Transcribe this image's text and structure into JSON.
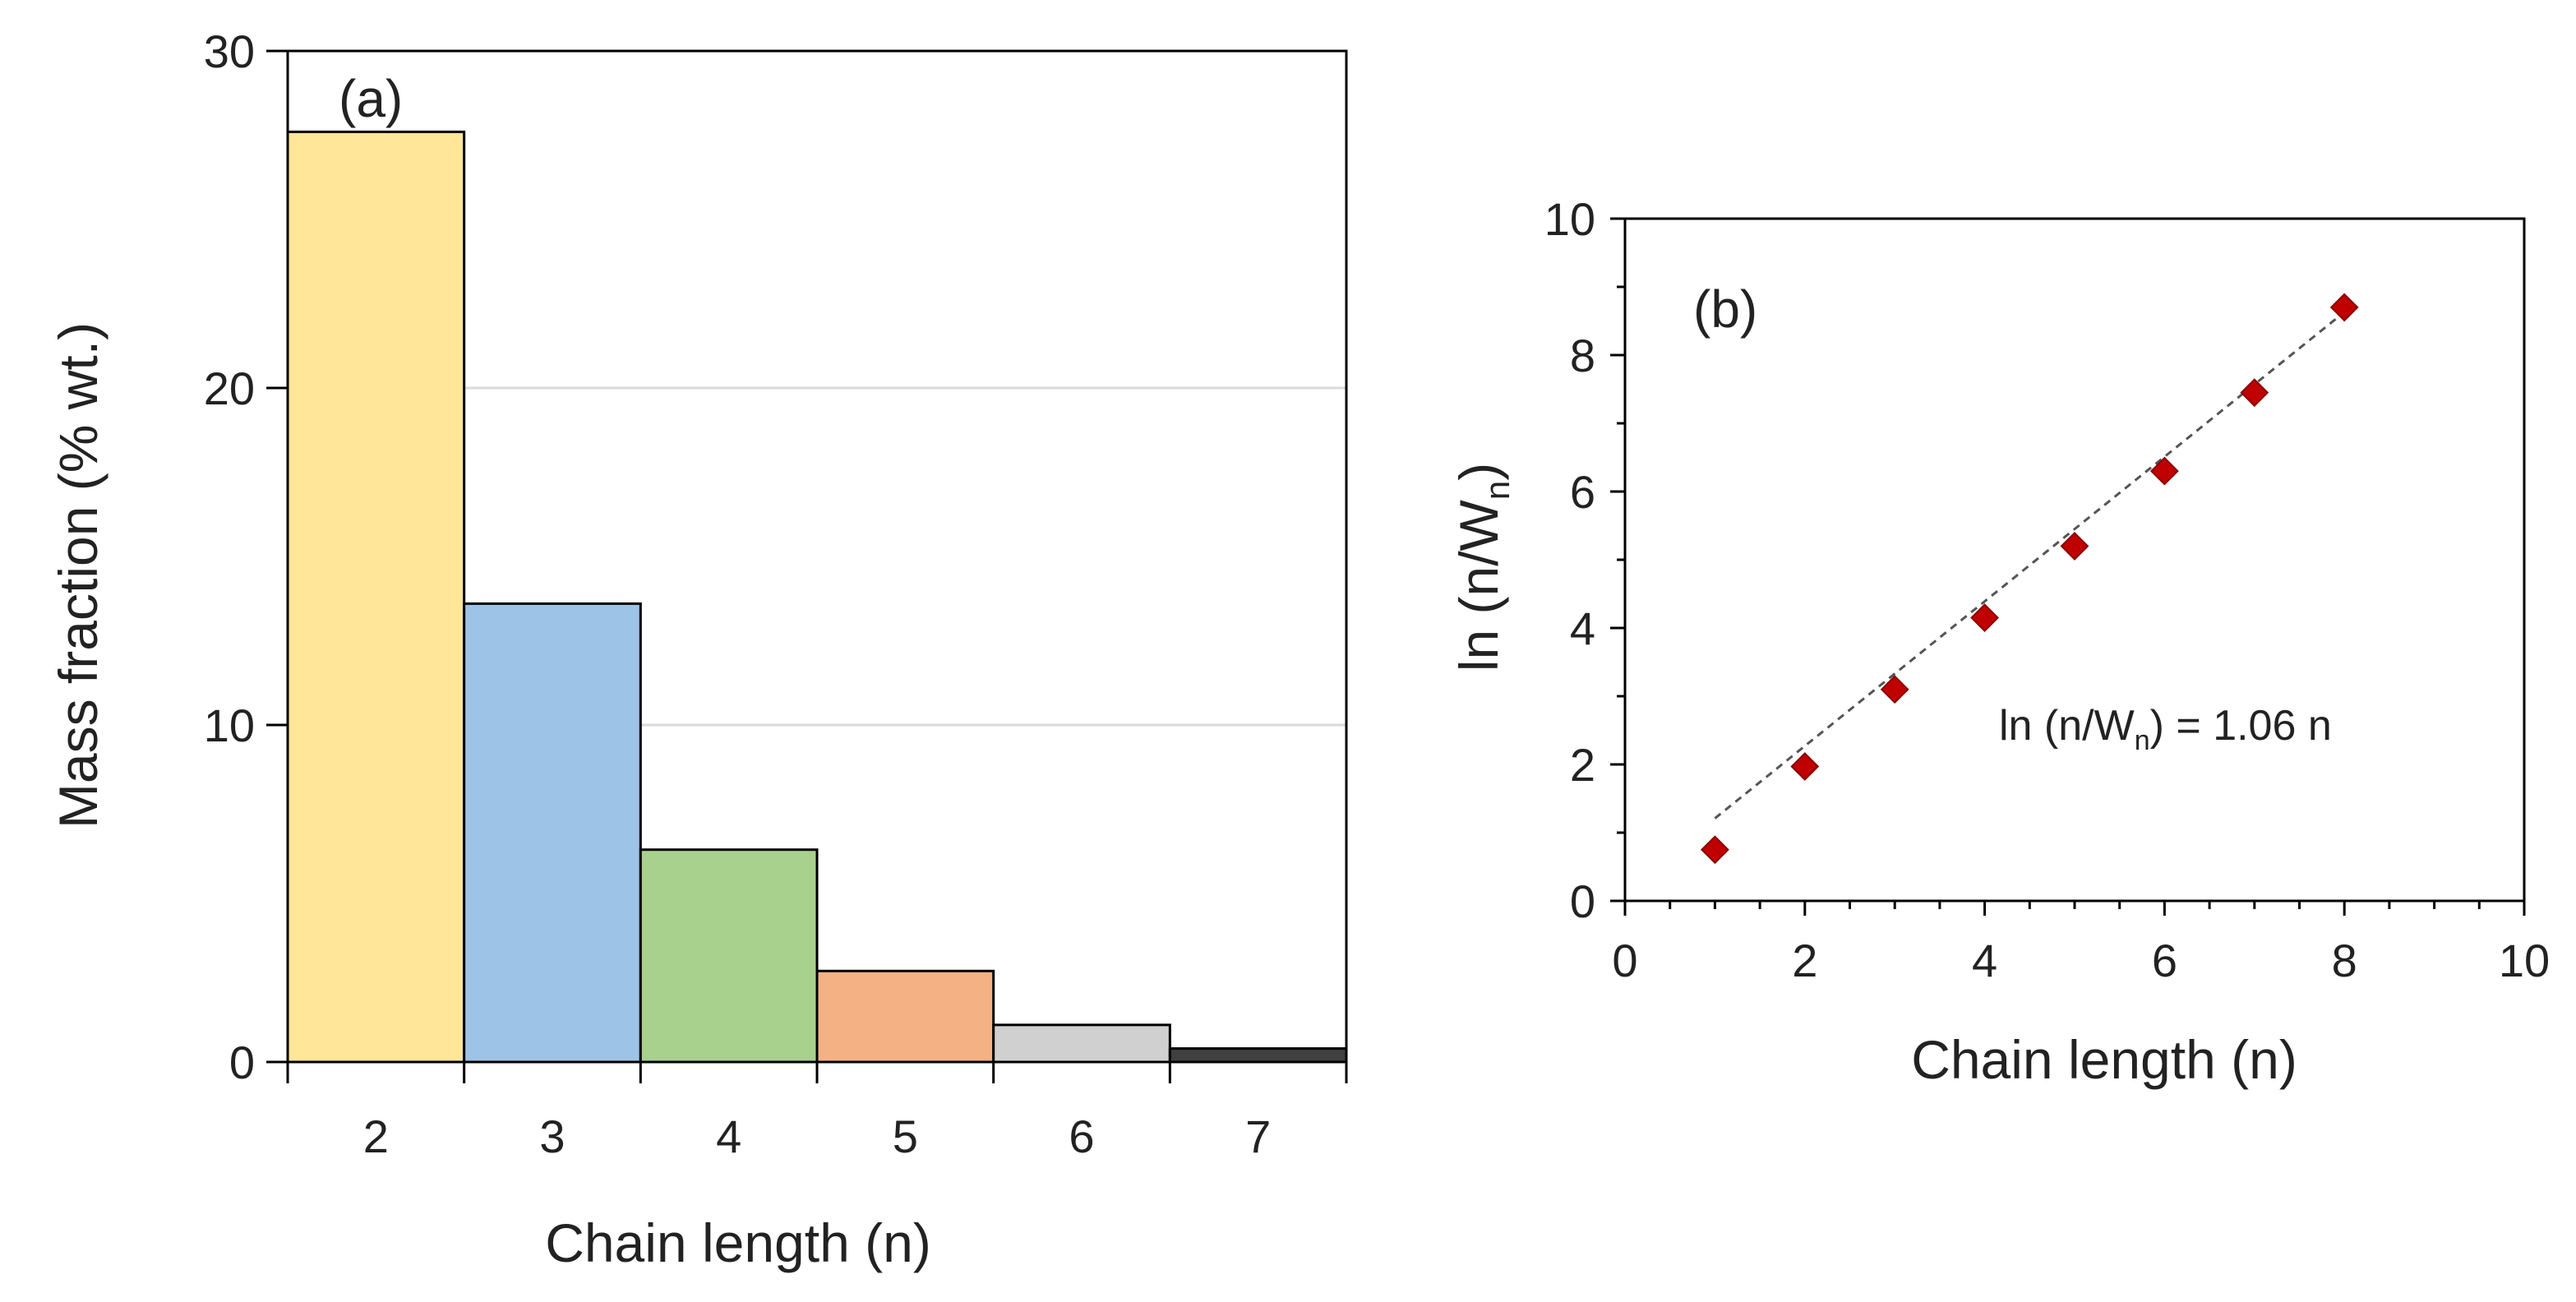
{
  "chart_data": [
    {
      "type": "bar",
      "panel": "(a)",
      "categories": [
        "2",
        "3",
        "4",
        "5",
        "6",
        "7"
      ],
      "values": [
        27.6,
        13.6,
        6.3,
        2.7,
        1.1,
        0.4
      ],
      "colors": [
        "#FFE699",
        "#9DC3E6",
        "#A9D18E",
        "#F4B183",
        "#D0D0D0",
        "#404040"
      ],
      "xlabel": "Chain length (n)",
      "ylabel": "Mass fraction (% wt.)",
      "ylim": [
        0,
        30
      ],
      "yticks": [
        0,
        10,
        20,
        30
      ],
      "grid": true
    },
    {
      "type": "scatter",
      "panel": "(b)",
      "x": [
        1,
        2,
        3,
        4,
        5,
        6,
        7,
        8
      ],
      "y": [
        0.75,
        1.97,
        3.1,
        4.15,
        5.2,
        6.3,
        7.45,
        8.7
      ],
      "marker_color": "#C00000",
      "fit": {
        "slope": 1.06,
        "intercept": 0,
        "style": "dashed"
      },
      "equation": {
        "prefix": "ln (n/W",
        "sub": "n",
        "suffix": ") = 1.06 n"
      },
      "xlabel": "Chain length (n)",
      "ylabel": {
        "prefix": "ln (n/W",
        "sub": "n",
        "suffix": ")"
      },
      "xlim": [
        0,
        10
      ],
      "ylim": [
        0,
        10
      ],
      "xticks": [
        0,
        2,
        4,
        6,
        8,
        10
      ],
      "yticks": [
        0,
        2,
        4,
        6,
        8,
        10
      ],
      "grid": false
    }
  ]
}
